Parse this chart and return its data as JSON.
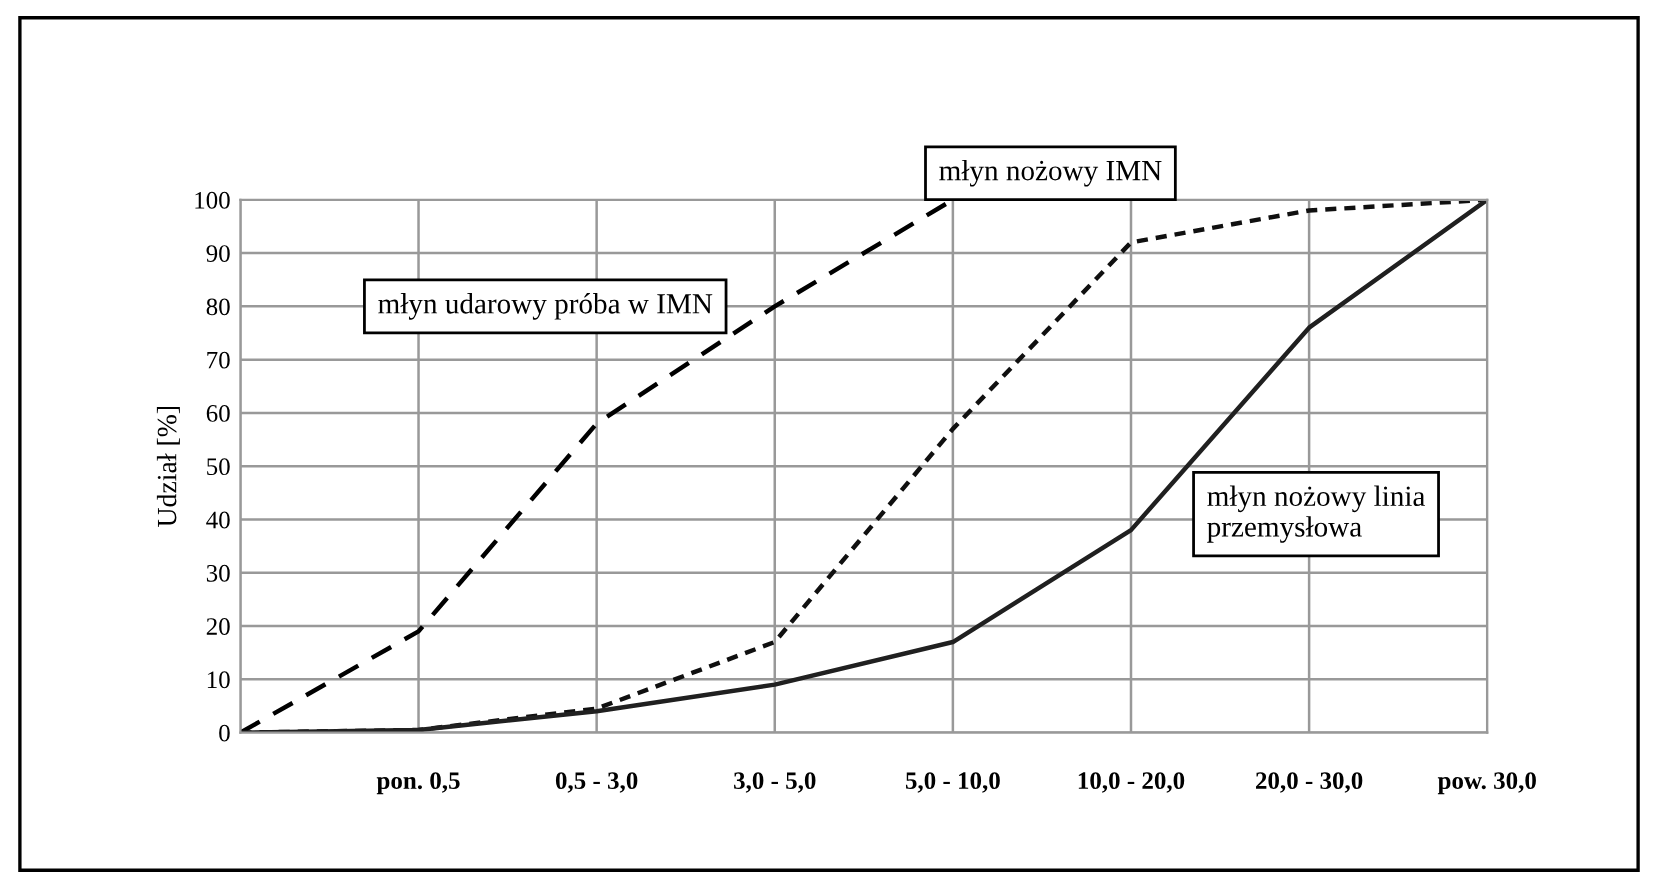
{
  "chart_data": {
    "type": "line",
    "ylabel": "Udział [%]",
    "categories": [
      null,
      "pon. 0,5",
      "0,5 - 3,0",
      "3,0 - 5,0",
      "5,0 - 10,0",
      "10,0 - 20,0",
      "20,0 - 30,0",
      "pow. 30,0"
    ],
    "ylim": [
      0,
      100
    ],
    "yticks": [
      0,
      10,
      20,
      30,
      40,
      50,
      60,
      70,
      80,
      90,
      100
    ],
    "grid": true,
    "legend": false,
    "marker": "none",
    "series": [
      {
        "name": "młyn udarowy próba w IMN",
        "color": "#000000",
        "line_style": "dashed",
        "values": [
          0,
          19,
          58,
          80,
          100,
          null,
          null,
          null
        ]
      },
      {
        "name": "młyn nożowy IMN",
        "color": "#101010",
        "line_style": "dotted",
        "values": [
          0,
          0.5,
          4.5,
          17,
          57,
          92,
          98,
          100
        ]
      },
      {
        "name": "młyn nożowy linia\nprzemysłowa",
        "color": "#202020",
        "line_style": "solid",
        "values": [
          0,
          0.5,
          4,
          9,
          17,
          38,
          76,
          100
        ]
      }
    ]
  }
}
